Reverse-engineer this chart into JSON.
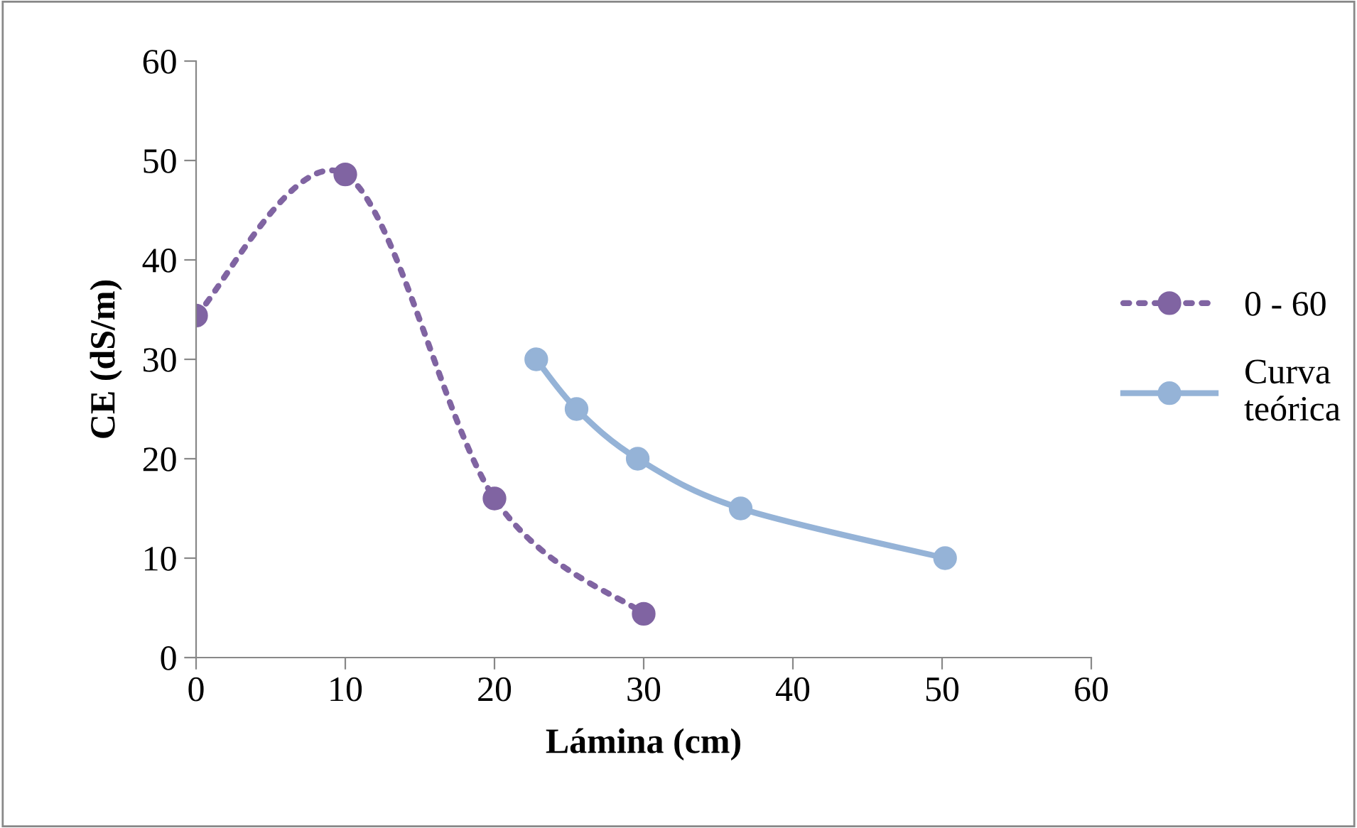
{
  "chart_data": {
    "type": "line",
    "xlabel": "Lámina (cm)",
    "ylabel": "CE (dS/m)",
    "xlim": [
      0,
      60
    ],
    "xticks": [
      0,
      10,
      20,
      30,
      40,
      50,
      60
    ],
    "ylim": [
      0,
      60
    ],
    "yticks": [
      0,
      10,
      20,
      30,
      40,
      50,
      60
    ],
    "grid": false,
    "legend": "right",
    "marker": "circle",
    "series": [
      {
        "name": "0 - 60",
        "color": "#8064a2",
        "line_style": "dotted",
        "x": [
          0,
          10,
          20,
          30
        ],
        "values": [
          34.4,
          48.6,
          16,
          4.4
        ]
      },
      {
        "name": "Curva teórica",
        "color": "#95b3d7",
        "line_style": "solid",
        "x": [
          22.8,
          25.5,
          29.6,
          36.5,
          50.2
        ],
        "values": [
          30,
          25,
          20,
          15,
          10
        ]
      }
    ]
  }
}
